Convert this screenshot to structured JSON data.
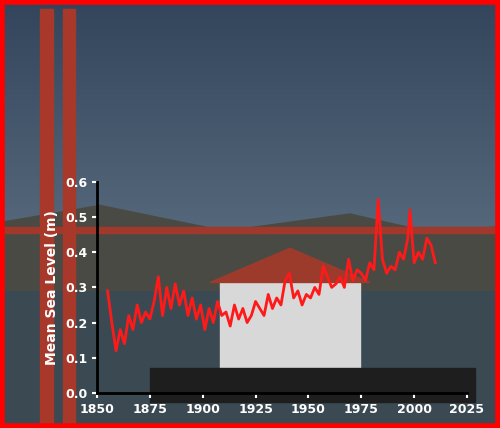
{
  "chart_data": {
    "type": "line",
    "y_label": "Mean Sea Level (m)",
    "x": [
      1855,
      1857,
      1859,
      1861,
      1863,
      1865,
      1867,
      1869,
      1871,
      1873,
      1875,
      1877,
      1879,
      1881,
      1883,
      1885,
      1887,
      1889,
      1891,
      1893,
      1895,
      1897,
      1899,
      1901,
      1903,
      1905,
      1907,
      1909,
      1911,
      1913,
      1915,
      1917,
      1919,
      1921,
      1923,
      1925,
      1927,
      1929,
      1931,
      1933,
      1935,
      1937,
      1939,
      1941,
      1943,
      1945,
      1947,
      1949,
      1951,
      1953,
      1955,
      1957,
      1959,
      1961,
      1963,
      1965,
      1967,
      1969,
      1971,
      1973,
      1975,
      1977,
      1979,
      1981,
      1983,
      1985,
      1987,
      1989,
      1991,
      1993,
      1995,
      1997,
      1998,
      2000,
      2002,
      2004,
      2006,
      2008,
      2010
    ],
    "values": [
      0.29,
      0.2,
      0.12,
      0.18,
      0.14,
      0.22,
      0.18,
      0.25,
      0.2,
      0.23,
      0.21,
      0.26,
      0.33,
      0.22,
      0.3,
      0.24,
      0.31,
      0.25,
      0.29,
      0.22,
      0.27,
      0.21,
      0.25,
      0.18,
      0.24,
      0.2,
      0.26,
      0.22,
      0.23,
      0.19,
      0.25,
      0.21,
      0.24,
      0.2,
      0.22,
      0.26,
      0.24,
      0.22,
      0.28,
      0.24,
      0.27,
      0.25,
      0.32,
      0.34,
      0.27,
      0.29,
      0.25,
      0.28,
      0.27,
      0.3,
      0.28,
      0.36,
      0.33,
      0.3,
      0.31,
      0.33,
      0.3,
      0.38,
      0.32,
      0.35,
      0.34,
      0.32,
      0.37,
      0.35,
      0.55,
      0.38,
      0.34,
      0.36,
      0.35,
      0.4,
      0.38,
      0.44,
      0.52,
      0.37,
      0.4,
      0.38,
      0.44,
      0.42,
      0.37
    ],
    "color": "#ff1a1a",
    "xlim": [
      1850,
      2025
    ],
    "xticks": [
      1850,
      1875,
      1900,
      1925,
      1950,
      1975,
      2000,
      2025
    ],
    "ylim": [
      0.0,
      0.6
    ],
    "yticks": [
      0.0,
      0.1,
      0.2,
      0.3,
      0.4,
      0.5,
      0.6
    ],
    "grid": false
  }
}
